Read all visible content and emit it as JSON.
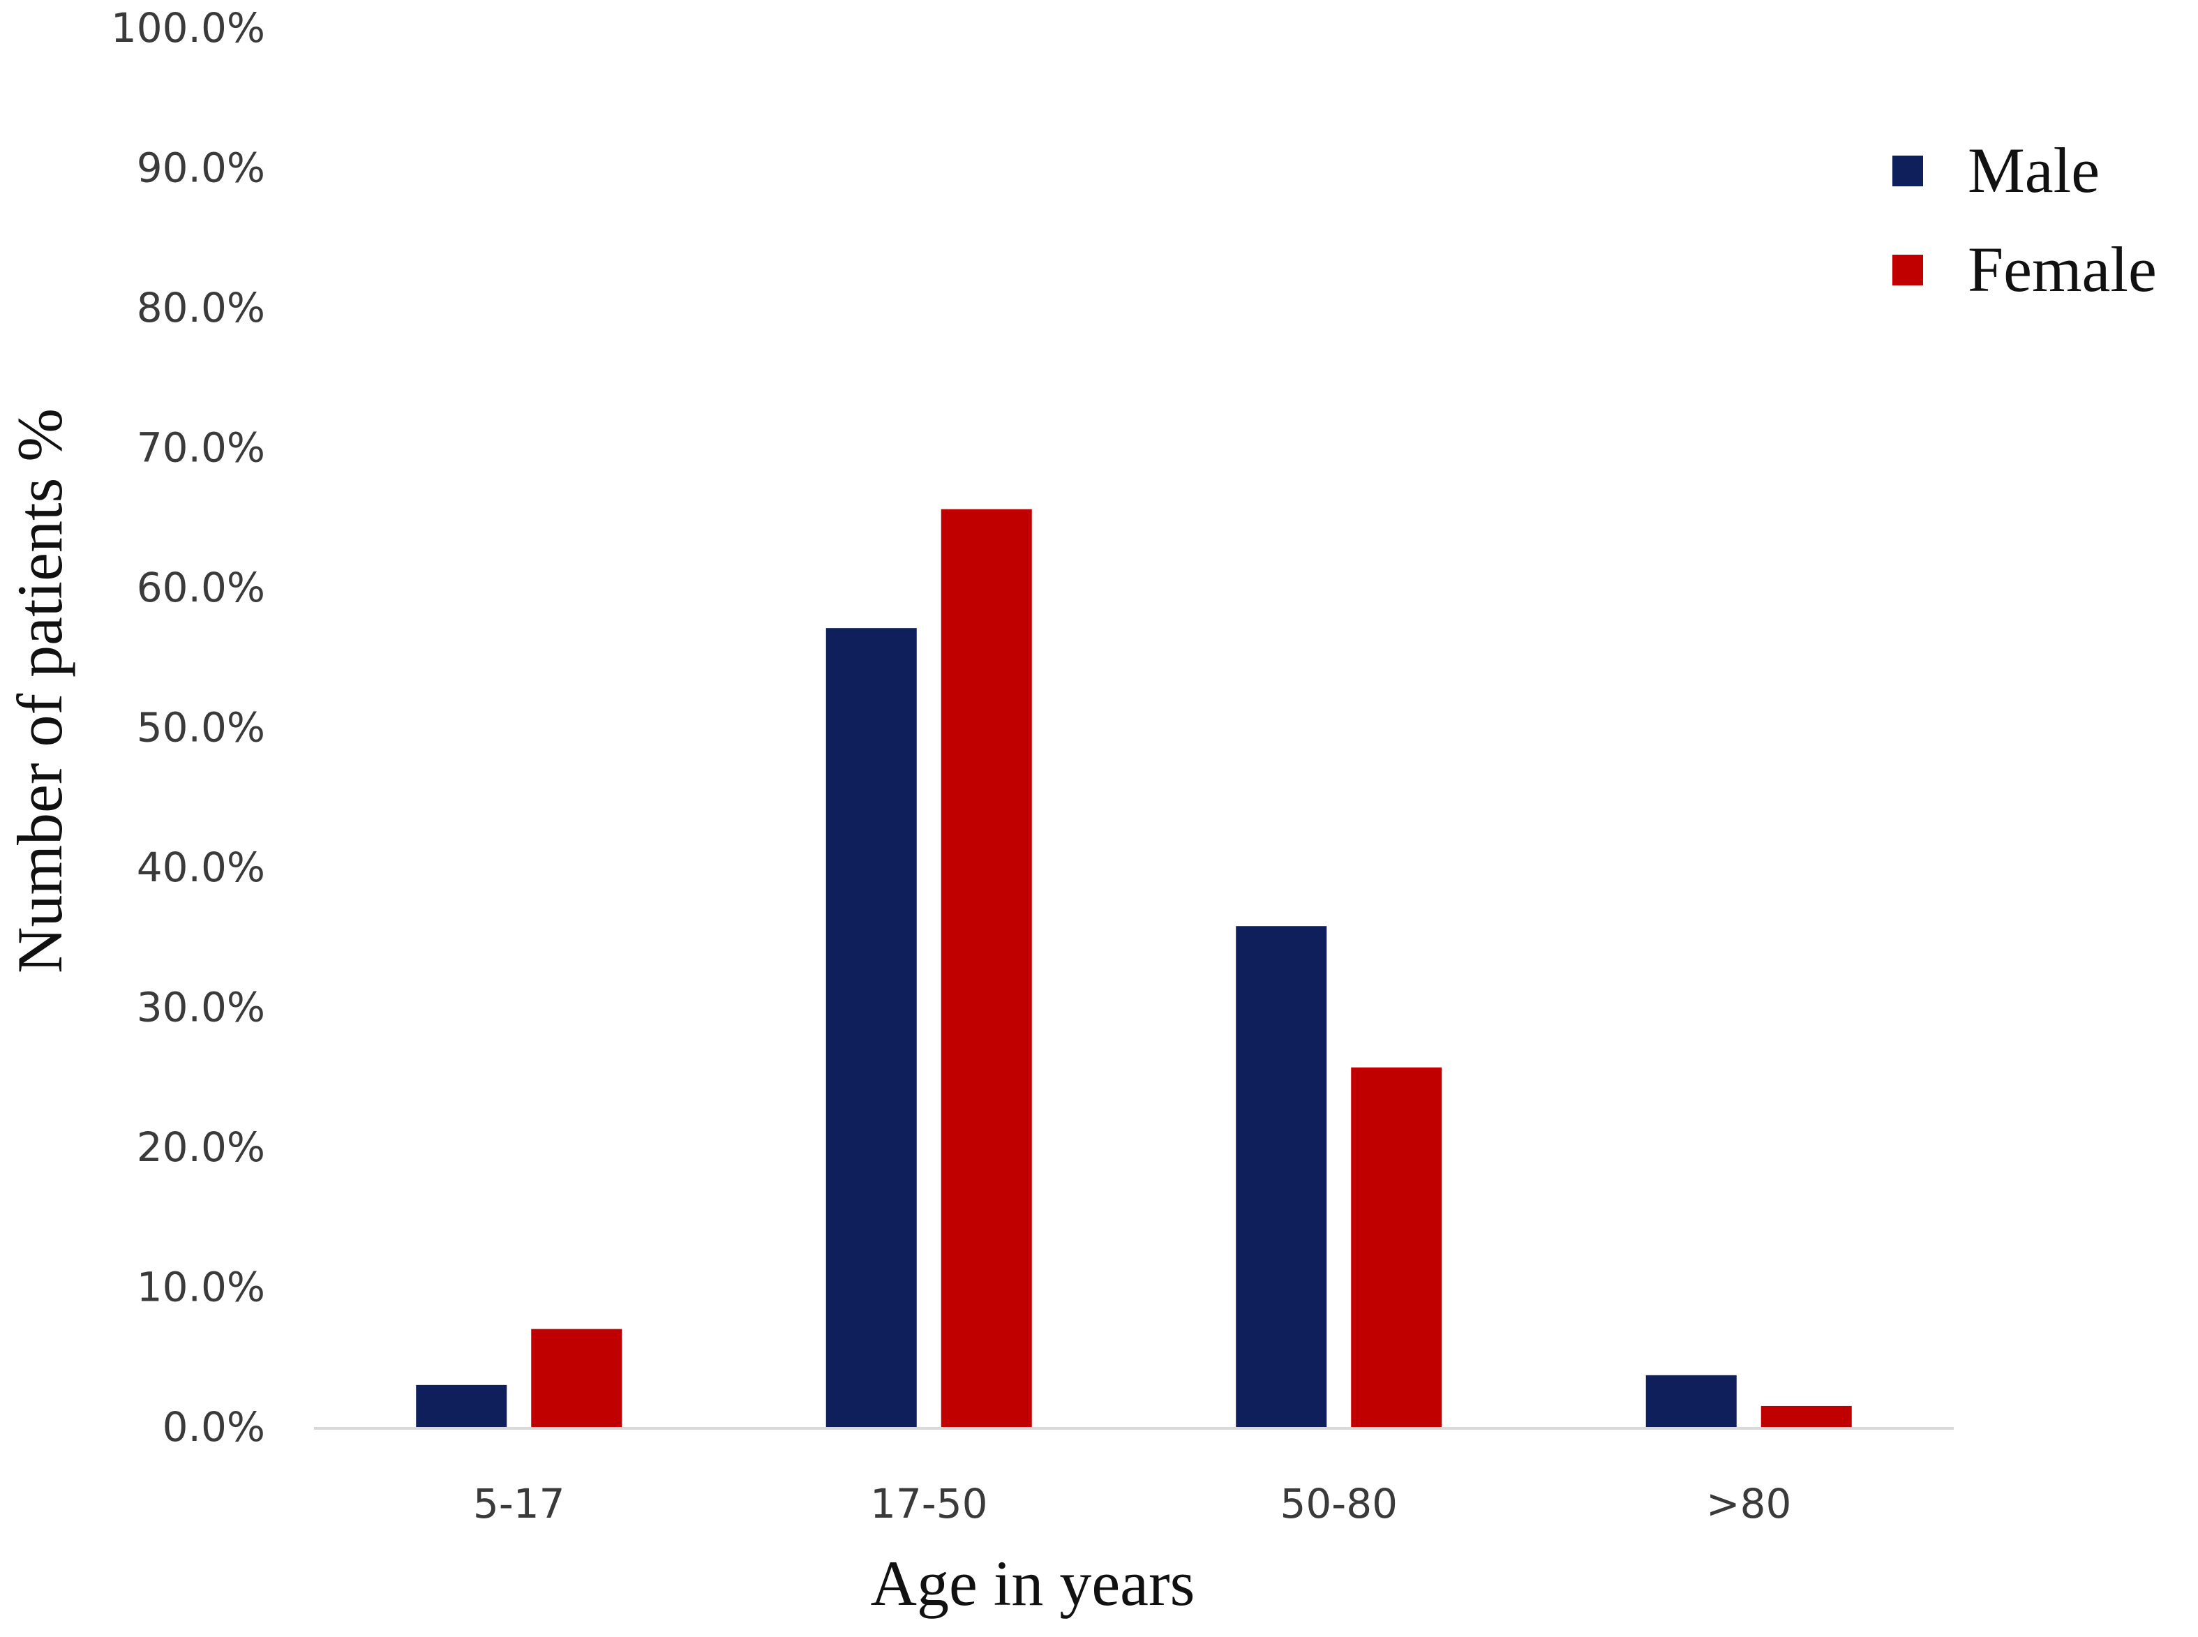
{
  "chart_data": {
    "type": "bar",
    "categories": [
      "5-17",
      "17-50",
      "50-80",
      ">80"
    ],
    "series": [
      {
        "name": "Male",
        "values": [
          3.0,
          57.1,
          35.8,
          3.7
        ],
        "color": "#0f1f5c"
      },
      {
        "name": "Female",
        "values": [
          7.0,
          65.6,
          25.7,
          1.5
        ],
        "color": "#c00000"
      }
    ],
    "y_ticks": [
      "0.0%",
      "10.0%",
      "20.0%",
      "30.0%",
      "40.0%",
      "50.0%",
      "60.0%",
      "70.0%",
      "80.0%",
      "90.0%",
      "100.0%"
    ],
    "ylim": [
      0,
      100
    ],
    "xlabel": "Age in years",
    "ylabel": "Number of patients %",
    "grid": false,
    "legend_position": "top-right"
  }
}
